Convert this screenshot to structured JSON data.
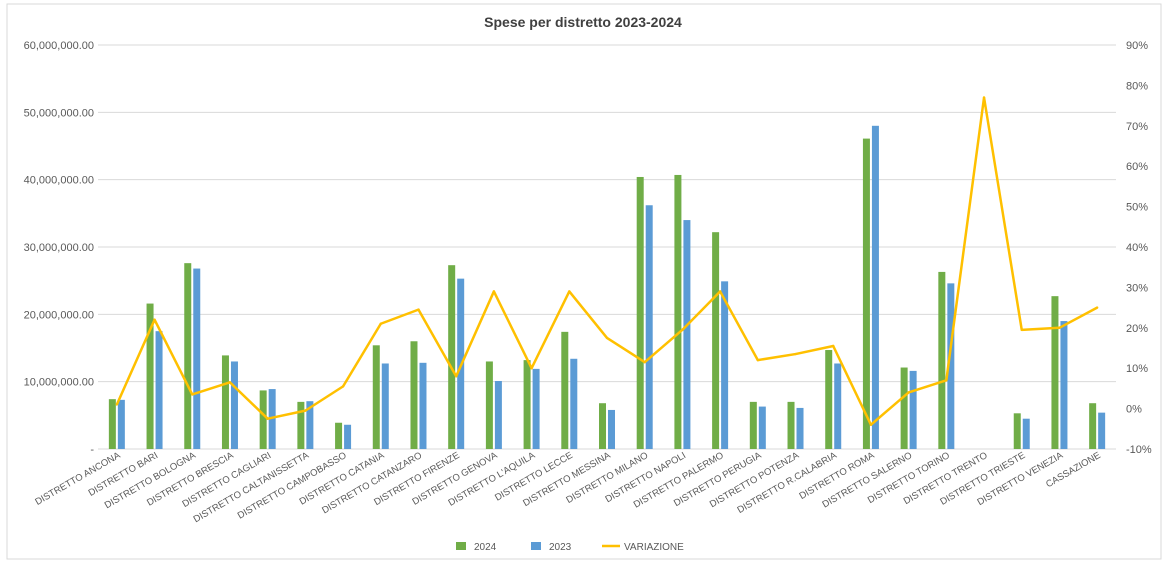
{
  "chart_data": {
    "type": "bar",
    "title": "Spese per distretto 2023-2024",
    "categories": [
      "DISTRETTO ANCONA",
      "DISTRETTO BARI",
      "DISTRETTO BOLOGNA",
      "DISTRETTO BRESCIA",
      "DISTRETTO CAGLIARI",
      "DISTRETTO CALTANISSETTA",
      "DISTRETTO CAMPOBASSO",
      "DISTRETTO CATANIA",
      "DISTRETTO CATANZARO",
      "DISTRETTO FIRENZE",
      "DISTRETTO GENOVA",
      "DISTRETTO L'AQUILA",
      "DISTRETTO LECCE",
      "DISTRETTO MESSINA",
      "DISTRETTO MILANO",
      "DISTRETTO NAPOLI",
      "DISTRETTO PALERMO",
      "DISTRETTO PERUGIA",
      "DISTRETTO POTENZA",
      "DISTRETTO R.CALABRIA",
      "DISTRETTO ROMA",
      "DISTRETTO SALERNO",
      "DISTRETTO TORINO",
      "DISTRETTO TRENTO",
      "DISTRETTO TRIESTE",
      "DISTRETTO VENEZIA",
      "CASSAZIONE"
    ],
    "series": [
      {
        "name": "2024",
        "axis": "primary",
        "kind": "bar",
        "color": "#70AD47",
        "values": [
          7400000,
          21600000,
          27600000,
          13900000,
          8700000,
          7000000,
          3900000,
          15400000,
          16000000,
          27300000,
          13000000,
          13200000,
          17400000,
          6800000,
          40400000,
          40700000,
          32200000,
          7000000,
          7000000,
          14700000,
          46100000,
          12100000,
          26300000,
          null,
          5300000,
          22700000,
          6800000
        ]
      },
      {
        "name": "2023",
        "axis": "primary",
        "kind": "bar",
        "color": "#5B9BD5",
        "values": [
          7300000,
          17500000,
          26800000,
          13000000,
          8900000,
          7100000,
          3600000,
          12700000,
          12800000,
          25300000,
          10100000,
          11900000,
          13400000,
          5800000,
          36200000,
          34000000,
          24900000,
          6300000,
          6100000,
          12700000,
          48000000,
          11600000,
          24600000,
          null,
          4500000,
          19000000,
          5400000
        ]
      },
      {
        "name": "VARIAZIONE",
        "axis": "secondary",
        "kind": "line",
        "color": "#FFC000",
        "values": [
          0.01,
          0.22,
          0.035,
          0.065,
          -0.025,
          -0.005,
          0.055,
          0.21,
          0.245,
          0.08,
          0.29,
          0.1,
          0.29,
          0.175,
          0.115,
          0.195,
          0.29,
          0.12,
          0.135,
          0.155,
          -0.04,
          0.04,
          0.07,
          0.77,
          0.195,
          0.2,
          0.25
        ]
      }
    ],
    "ylim": [
      0,
      60000000
    ],
    "y_ticks": [
      "-",
      "10,000,000.00",
      "20,000,000.00",
      "30,000,000.00",
      "40,000,000.00",
      "50,000,000.00",
      "60,000,000.00"
    ],
    "y2lim": [
      -0.1,
      0.9
    ],
    "y2_ticks": [
      "-10%",
      "0%",
      "10%",
      "20%",
      "30%",
      "40%",
      "50%",
      "60%",
      "70%",
      "80%",
      "90%"
    ],
    "xlabel": "",
    "ylabel": "",
    "grid": "horizontal",
    "legend": "bottom"
  }
}
